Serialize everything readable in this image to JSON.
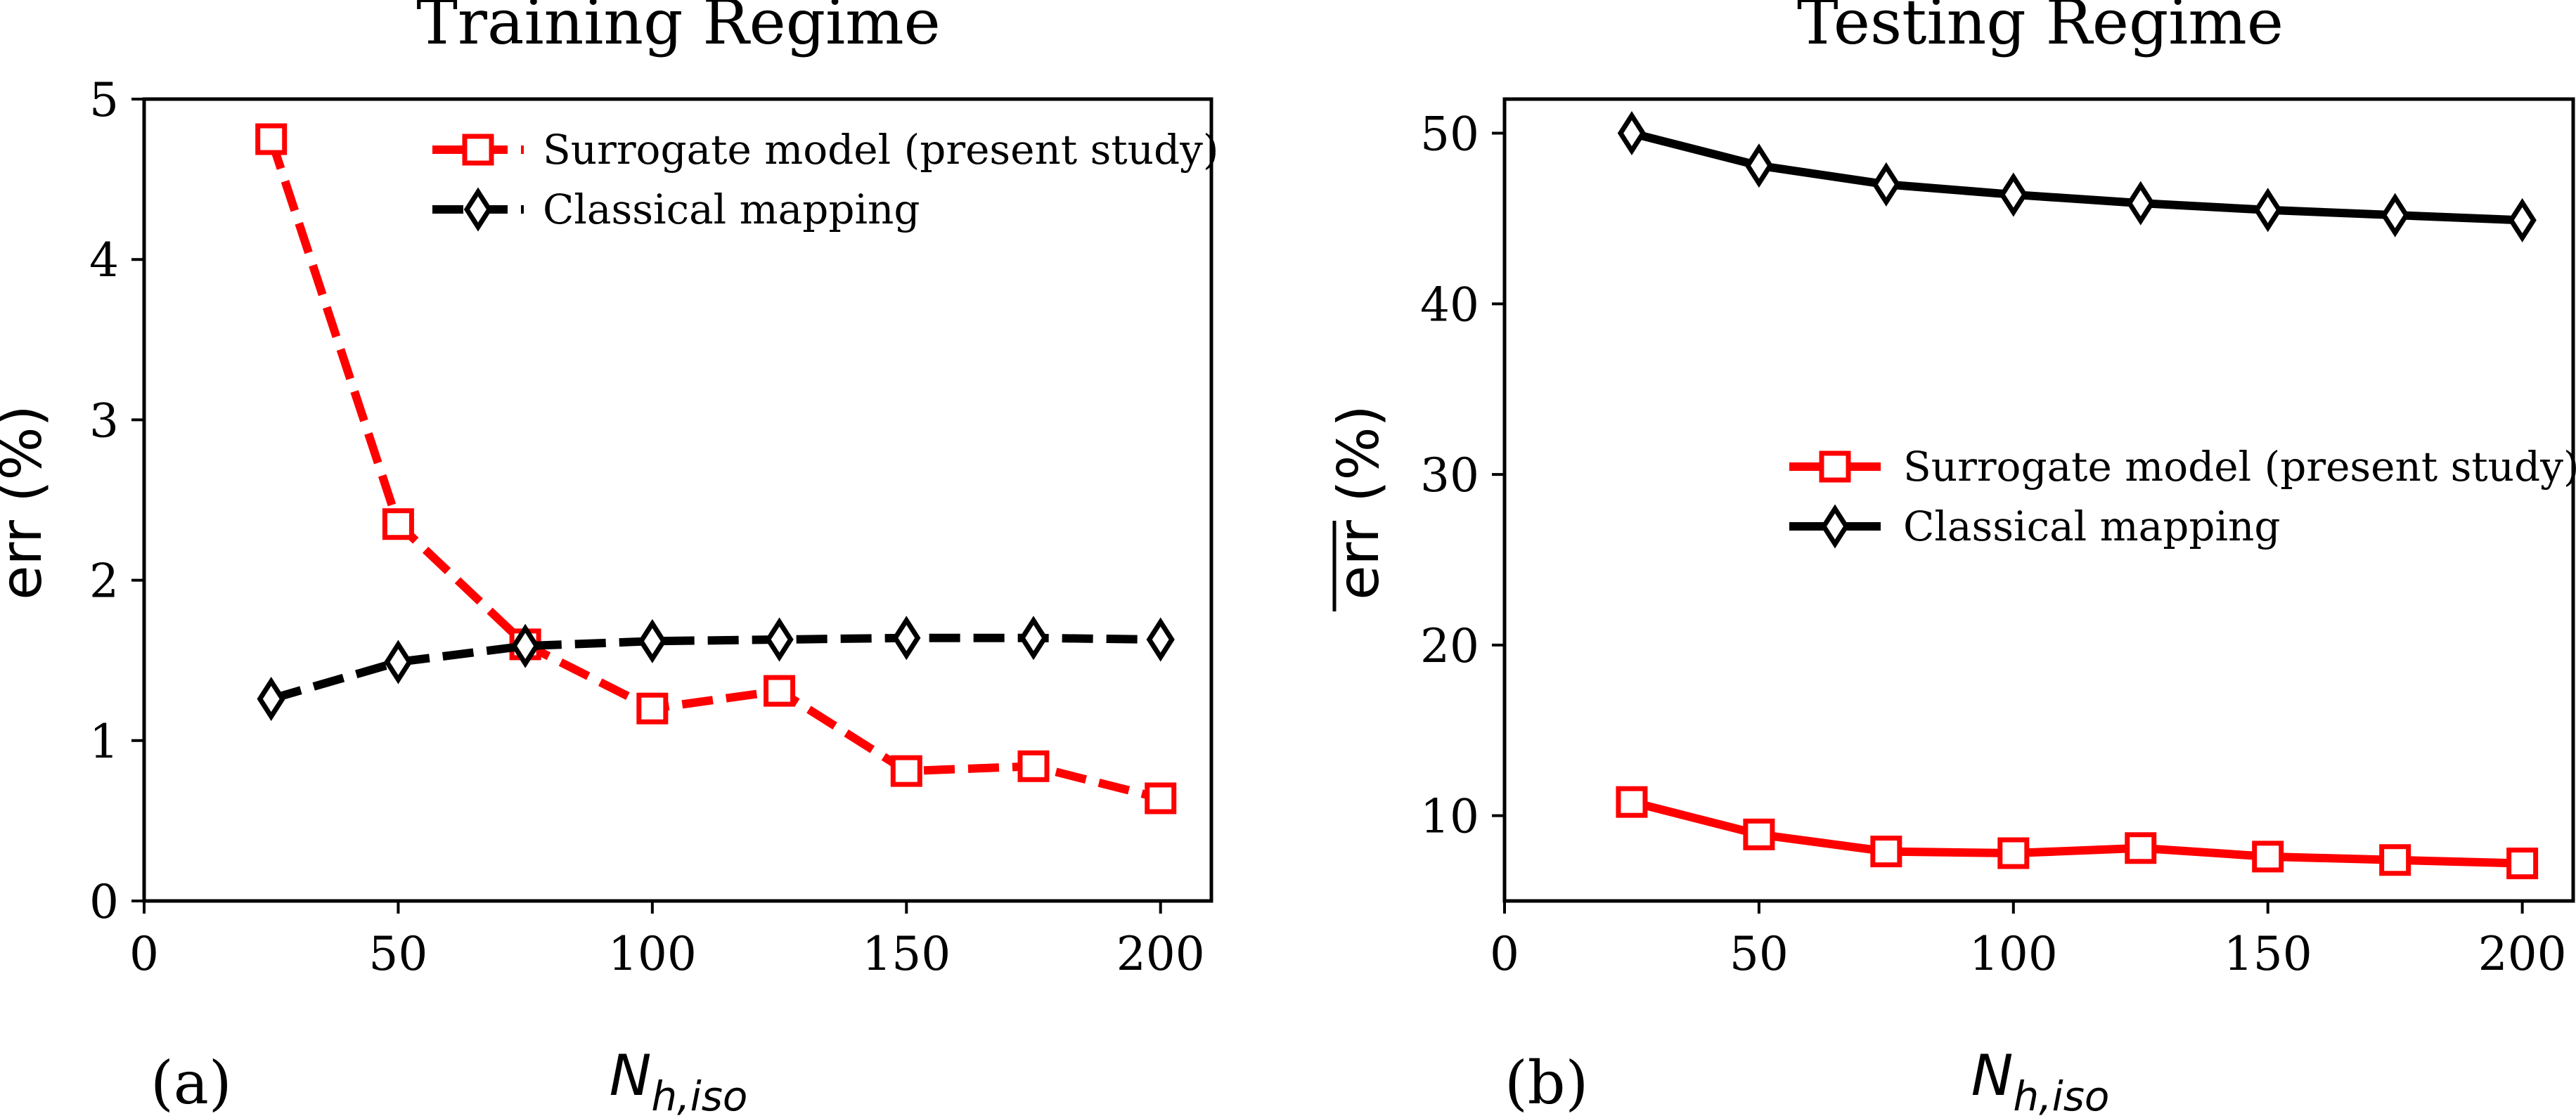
{
  "chart_data": [
    {
      "type": "line",
      "panel_label": "(a)",
      "title": "Training Regime",
      "ylabel": "err (%)",
      "xlabel_main": "N",
      "xlabel_sub": "h,iso",
      "xlim": [
        0,
        210
      ],
      "ylim": [
        0,
        5
      ],
      "xticks": [
        0,
        50,
        100,
        150,
        200
      ],
      "yticks": [
        0,
        1,
        2,
        3,
        4,
        5
      ],
      "x": [
        25,
        50,
        75,
        100,
        125,
        150,
        175,
        200
      ],
      "legend_loc": "top-right",
      "series": [
        {
          "name": "Surrogate model (present study)",
          "color": "#ff0000",
          "marker": "square",
          "linestyle": "dashed",
          "values": [
            4.75,
            2.35,
            1.6,
            1.2,
            1.31,
            0.81,
            0.84,
            0.64
          ]
        },
        {
          "name": "Classical mapping",
          "color": "#000000",
          "marker": "thin_diamond",
          "linestyle": "dashed",
          "values": [
            1.26,
            1.49,
            1.59,
            1.62,
            1.63,
            1.64,
            1.64,
            1.63
          ]
        }
      ]
    },
    {
      "type": "line",
      "panel_label": "(b)",
      "title": "Testing Regime",
      "ylabel": "err (%)",
      "xlabel_main": "N",
      "xlabel_sub": "h,iso",
      "xlim": [
        0,
        210
      ],
      "ylim": [
        5,
        52
      ],
      "xticks": [
        0,
        50,
        100,
        150,
        200
      ],
      "yticks": [
        10,
        20,
        30,
        40,
        50
      ],
      "x": [
        25,
        50,
        75,
        100,
        125,
        150,
        175,
        200
      ],
      "legend_loc": "center-right",
      "series": [
        {
          "name": "Surrogate model (present study)",
          "color": "#ff0000",
          "marker": "square",
          "linestyle": "solid",
          "values": [
            10.8,
            8.9,
            7.9,
            7.8,
            8.1,
            7.6,
            7.4,
            7.2
          ]
        },
        {
          "name": "Classical mapping",
          "color": "#000000",
          "marker": "thin_diamond",
          "linestyle": "solid",
          "values": [
            50.0,
            48.1,
            47.0,
            46.4,
            45.9,
            45.5,
            45.2,
            44.9
          ]
        }
      ]
    }
  ]
}
